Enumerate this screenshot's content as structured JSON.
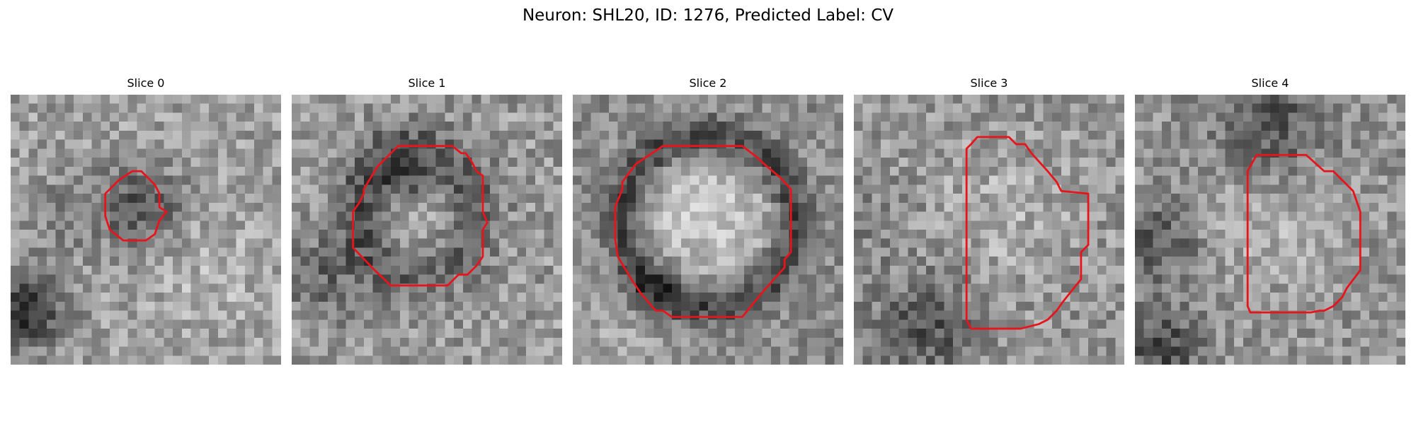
{
  "figure": {
    "title": "Neuron: SHL20, ID: 1276, Predicted Label: CV"
  },
  "colors": {
    "contour": "#e8141c",
    "background": "#ffffff",
    "colormap": "grayscale"
  },
  "panels": [
    {
      "title": "Slice 0",
      "image": "noisy-grayscale-em-slice",
      "center_tone": "dark"
    },
    {
      "title": "Slice 1",
      "image": "noisy-grayscale-em-slice",
      "center_tone": "dark"
    },
    {
      "title": "Slice 2",
      "image": "noisy-grayscale-em-slice",
      "center_tone": "bright"
    },
    {
      "title": "Slice 3",
      "image": "noisy-grayscale-em-slice",
      "center_tone": "mixed"
    },
    {
      "title": "Slice 4",
      "image": "noisy-grayscale-em-slice",
      "center_tone": "bright"
    }
  ]
}
